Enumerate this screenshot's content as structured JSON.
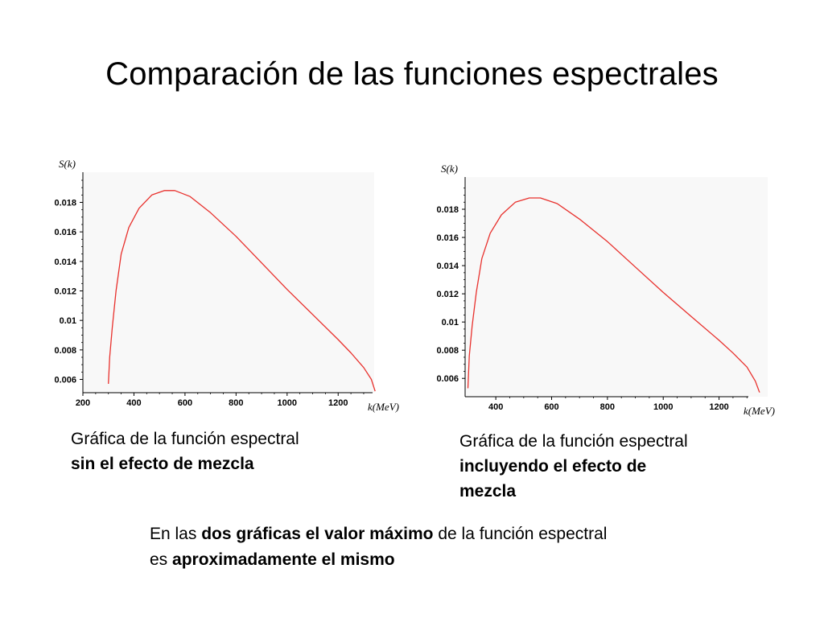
{
  "slide": {
    "title": "Comparación de las funciones espectrales"
  },
  "captions": {
    "left_line1": "Gráfica de la función espectral",
    "left_line2": "sin el efecto de mezcla",
    "right_line1": "Gráfica de la función espectral",
    "right_line2a": "incluyendo el efecto de",
    "right_line2b": "mezcla"
  },
  "note": {
    "t1": "En las ",
    "t2": "dos gráficas el valor máximo",
    "t3": " de la función espectral",
    "t4": "es ",
    "t5": "aproximadamente el mismo"
  },
  "chart_data": [
    {
      "type": "line",
      "ylabel": "S(k)",
      "xlabel": "k(MeV)",
      "xlim": [
        200,
        1360
      ],
      "ylim": [
        0.0051,
        0.0195
      ],
      "xticks": [
        200,
        400,
        600,
        800,
        1000,
        1200
      ],
      "yticks": [
        0.006,
        0.008,
        0.01,
        0.012,
        0.014,
        0.016,
        0.018
      ],
      "ytick_labels": [
        "0.006",
        "0.008",
        "0.01",
        "0.012",
        "0.014",
        "0.016",
        "0.018"
      ],
      "grid": false,
      "line_color": "#e8302c",
      "series": [
        {
          "x": [
            300,
            305,
            315,
            330,
            350,
            380,
            420,
            470,
            520,
            560,
            620,
            700,
            800,
            900,
            1000,
            1100,
            1200,
            1250,
            1300,
            1330,
            1345
          ],
          "y": [
            0.0057,
            0.0075,
            0.0095,
            0.012,
            0.0145,
            0.0163,
            0.0176,
            0.0185,
            0.0188,
            0.0188,
            0.0184,
            0.0173,
            0.0157,
            0.0139,
            0.0121,
            0.0104,
            0.0087,
            0.0078,
            0.0068,
            0.006,
            0.0052
          ]
        }
      ]
    },
    {
      "type": "line",
      "ylabel": "S(k)",
      "xlabel": "k(MeV)",
      "xlim": [
        290,
        1380
      ],
      "ylim": [
        0.0047,
        0.0196
      ],
      "xticks": [
        400,
        600,
        800,
        1000,
        1200
      ],
      "yticks": [
        0.006,
        0.008,
        0.01,
        0.012,
        0.014,
        0.016,
        0.018
      ],
      "ytick_labels": [
        "0.006",
        "0.008",
        "0.01",
        "0.012",
        "0.014",
        "0.016",
        "0.018"
      ],
      "grid": false,
      "line_color": "#e8302c",
      "series": [
        {
          "x": [
            300,
            305,
            315,
            330,
            350,
            380,
            420,
            470,
            520,
            560,
            620,
            700,
            800,
            900,
            1000,
            1100,
            1200,
            1250,
            1300,
            1330,
            1345
          ],
          "y": [
            0.0053,
            0.0076,
            0.0097,
            0.0121,
            0.0145,
            0.0163,
            0.0176,
            0.0185,
            0.0188,
            0.0188,
            0.0184,
            0.0173,
            0.0157,
            0.0139,
            0.0121,
            0.0104,
            0.0087,
            0.0078,
            0.0068,
            0.0058,
            0.005
          ]
        }
      ]
    }
  ]
}
